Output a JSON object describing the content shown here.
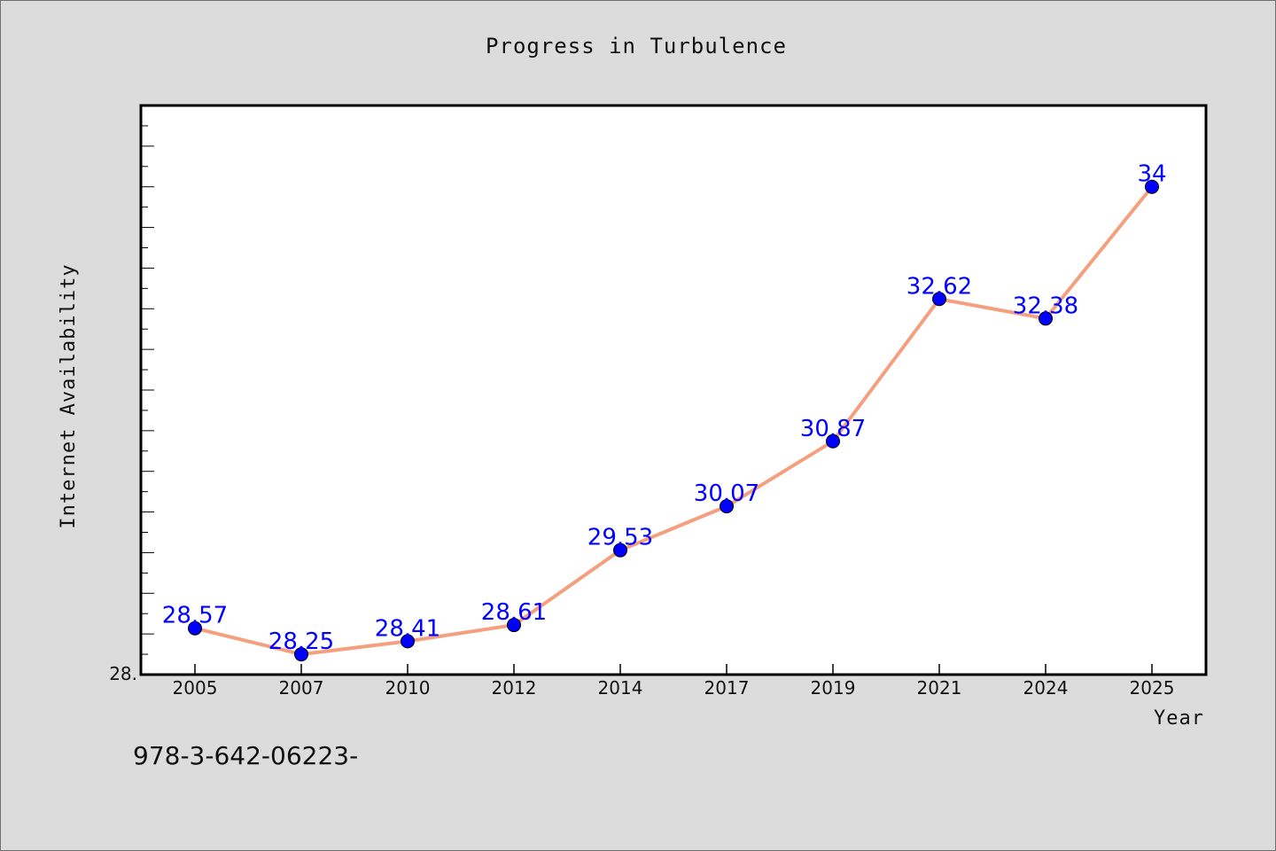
{
  "chart_data": {
    "type": "line",
    "title": "Progress in Turbulence",
    "xlabel": "Year",
    "ylabel": "Internet Availability",
    "categories": [
      "2005",
      "2007",
      "2010",
      "2012",
      "2014",
      "2017",
      "2019",
      "2021",
      "2024",
      "2025"
    ],
    "series": [
      {
        "values": [
          28.57,
          28.25,
          28.41,
          28.61,
          29.53,
          30.07,
          30.87,
          32.62,
          32.38,
          34
        ]
      }
    ],
    "data_labels": [
      "28.57",
      "28.25",
      "28.41",
      "28.61",
      "29.53",
      "30.07",
      "30.87",
      "32.62",
      "32.38",
      "34"
    ],
    "ytick_labels": [
      "28."
    ],
    "ylim": [
      28,
      35
    ],
    "grid": false,
    "legend": "none",
    "colors": {
      "line": "#f4a07e",
      "marker": "#0000ff",
      "data_label": "#0000ff",
      "plot_background": "#ffffff",
      "figure_background": "#dcdcdc"
    }
  },
  "footer_text": "978-3-642-06223-"
}
